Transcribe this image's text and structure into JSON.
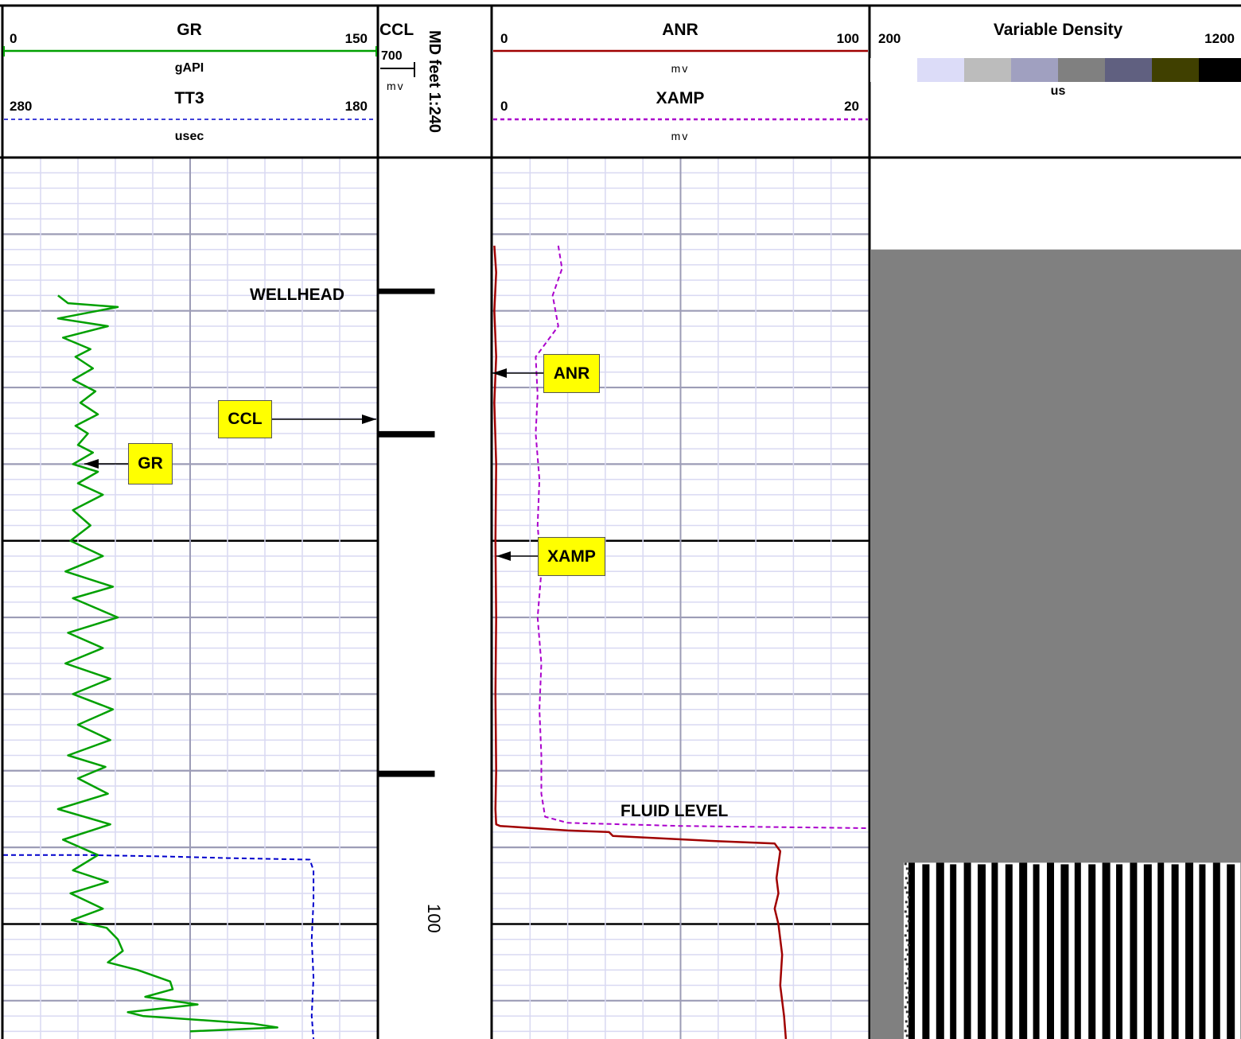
{
  "chart_data": {
    "type": "line",
    "title": "",
    "depth_axis": {
      "label": "MD feet 1:240",
      "range": [
        0,
        115
      ],
      "tick_labels": [
        {
          "depth": 100,
          "label": "100"
        }
      ]
    },
    "tracks": [
      {
        "id": "track1",
        "curves": [
          {
            "name": "GR",
            "unit": "gAPI",
            "scale_left": 0,
            "scale_right": 150,
            "color": "#00a000",
            "style": "solid",
            "points": [
              [
                22.0,
                18.0
              ],
              [
                26.0,
                19.0
              ],
              [
                46.0,
                19.5
              ],
              [
                22.0,
                21.0
              ],
              [
                42.0,
                22.0
              ],
              [
                24.0,
                23.5
              ],
              [
                35.0,
                25.0
              ],
              [
                29.0,
                26.0
              ],
              [
                36.0,
                27.5
              ],
              [
                28.0,
                29.0
              ],
              [
                37.0,
                30.5
              ],
              [
                31.0,
                32.0
              ],
              [
                38.0,
                33.5
              ],
              [
                29.0,
                35.0
              ],
              [
                34.0,
                36.0
              ],
              [
                30.0,
                37.5
              ],
              [
                36.0,
                38.5
              ],
              [
                28.0,
                40.0
              ],
              [
                38.0,
                41.0
              ],
              [
                30.0,
                42.5
              ],
              [
                40.0,
                44.0
              ],
              [
                28.0,
                46.0
              ],
              [
                35.0,
                48.0
              ],
              [
                27.0,
                50.0
              ],
              [
                40.0,
                52.0
              ],
              [
                25.0,
                54.0
              ],
              [
                44.0,
                56.0
              ],
              [
                28.0,
                57.5
              ],
              [
                46.0,
                60.0
              ],
              [
                26.0,
                62.0
              ],
              [
                40.0,
                64.0
              ],
              [
                25.0,
                66.0
              ],
              [
                43.0,
                68.0
              ],
              [
                28.0,
                70.0
              ],
              [
                44.0,
                72.0
              ],
              [
                30.0,
                74.0
              ],
              [
                43.0,
                76.0
              ],
              [
                26.0,
                78.0
              ],
              [
                41.0,
                79.5
              ],
              [
                30.0,
                81.0
              ],
              [
                42.0,
                83.0
              ],
              [
                22.0,
                85.0
              ],
              [
                43.0,
                87.0
              ],
              [
                24.0,
                89.0
              ],
              [
                38.0,
                91.0
              ],
              [
                28.0,
                93.0
              ],
              [
                42.0,
                94.5
              ],
              [
                27.0,
                96.0
              ],
              [
                40.0,
                98.0
              ],
              [
                27.5,
                99.5
              ],
              [
                41.5,
                100.5
              ],
              [
                46.0,
                102.0
              ],
              [
                48.0,
                103.5
              ],
              [
                42.0,
                105.0
              ],
              [
                54.0,
                106.0
              ],
              [
                67.0,
                107.5
              ],
              [
                68.0,
                108.5
              ],
              [
                57.0,
                109.5
              ],
              [
                78.0,
                110.5
              ],
              [
                50.0,
                111.5
              ],
              [
                56.0,
                112.0
              ],
              [
                100.0,
                113.0
              ],
              [
                110.0,
                113.5
              ],
              [
                75.0,
                114.0
              ]
            ]
          },
          {
            "name": "TT3",
            "unit": "usec",
            "scale_left": 280,
            "scale_right": 180,
            "color": "#0000cc",
            "style": "dashed",
            "points": [
              [
                280.0,
                91.0
              ],
              [
                257.0,
                91.0
              ],
              [
                235.0,
                91.2
              ],
              [
                220.0,
                91.4
              ],
              [
                198.0,
                91.6
              ],
              [
                197.0,
                93.0
              ],
              [
                197.0,
                97.0
              ],
              [
                197.5,
                102.0
              ],
              [
                197.0,
                107.0
              ],
              [
                197.5,
                112.0
              ],
              [
                197.0,
                115.0
              ]
            ]
          }
        ],
        "annotations": [
          {
            "text": "WELLHEAD",
            "depth": 17.5
          },
          {
            "text": "GR",
            "depth": 40.5,
            "tag": true
          },
          {
            "text": "CCL",
            "depth": 34.5,
            "tag": true
          }
        ]
      },
      {
        "id": "track_ccl",
        "curves": [
          {
            "name": "CCL",
            "unit": "mv",
            "scale_left": -300,
            "scale_right": 700,
            "color": "#000000",
            "style": "solid",
            "points": [
              [
                -300,
                0
              ],
              [
                -300,
                17.3
              ],
              [
                200,
                17.3
              ],
              [
                200,
                17.6
              ],
              [
                -300,
                17.6
              ],
              [
                -300,
                35.9
              ],
              [
                200,
                35.9
              ],
              [
                200,
                36.3
              ],
              [
                -300,
                36.3
              ],
              [
                -300,
                80.2
              ],
              [
                200,
                80.2
              ],
              [
                200,
                80.6
              ],
              [
                -300,
                80.6
              ],
              [
                -300,
                115
              ]
            ]
          }
        ],
        "scale_labels": [
          "700",
          "mv"
        ]
      },
      {
        "id": "track2",
        "curves": [
          {
            "name": "ANR",
            "unit": "mv",
            "scale_left": 0,
            "scale_right": 100,
            "color": "#a00000",
            "style": "solid",
            "points": [
              [
                0.5,
                11.5
              ],
              [
                1.0,
                15.0
              ],
              [
                0.5,
                20.0
              ],
              [
                1.0,
                26.0
              ],
              [
                0.5,
                32.0
              ],
              [
                1.0,
                40.0
              ],
              [
                0.8,
                50.0
              ],
              [
                1.0,
                60.0
              ],
              [
                0.8,
                70.0
              ],
              [
                1.0,
                80.0
              ],
              [
                0.8,
                85.0
              ],
              [
                1.0,
                87.0
              ],
              [
                2.0,
                87.2
              ],
              [
                20.0,
                87.8
              ],
              [
                31.0,
                88.0
              ],
              [
                32.0,
                88.5
              ],
              [
                60.0,
                89.2
              ],
              [
                75.0,
                89.5
              ],
              [
                76.5,
                90.5
              ],
              [
                75.5,
                94.0
              ],
              [
                76.0,
                96.0
              ],
              [
                75.0,
                98.0
              ],
              [
                76.0,
                100.0
              ],
              [
                77.0,
                104.0
              ],
              [
                76.5,
                108.0
              ],
              [
                77.5,
                112.0
              ],
              [
                78.0,
                115.0
              ]
            ]
          },
          {
            "name": "XAMP",
            "unit": "mv",
            "scale_left": 0,
            "scale_right": 20,
            "color": "#aa00cc",
            "style": "dashed",
            "points": [
              [
                3.5,
                11.5
              ],
              [
                3.7,
                14.5
              ],
              [
                3.2,
                18.0
              ],
              [
                3.5,
                22.0
              ],
              [
                2.3,
                26.0
              ],
              [
                2.4,
                31.0
              ],
              [
                2.3,
                36.0
              ],
              [
                2.5,
                42.0
              ],
              [
                2.4,
                48.0
              ],
              [
                2.6,
                54.0
              ],
              [
                2.4,
                60.0
              ],
              [
                2.6,
                66.0
              ],
              [
                2.5,
                72.0
              ],
              [
                2.6,
                78.0
              ],
              [
                2.6,
                83.0
              ],
              [
                2.8,
                86.0
              ],
              [
                4.0,
                86.8
              ],
              [
                10.0,
                87.2
              ],
              [
                20.0,
                87.5
              ]
            ]
          }
        ],
        "annotations": [
          {
            "text": "ANR",
            "depth": 26.5,
            "tag": true
          },
          {
            "text": "XAMP",
            "depth": 50.5,
            "tag": true
          },
          {
            "text": "FLUID LEVEL",
            "depth": 84.0
          }
        ]
      },
      {
        "id": "track_vdl",
        "name": "Variable Density",
        "unit": "us",
        "scale_left": 200,
        "scale_right": 1200,
        "colors": [
          "#ffffff",
          "#dcdcf8",
          "#bcbcbc",
          "#a0a0c0",
          "#808080",
          "#606080",
          "#404000",
          "#000000"
        ],
        "gray_fill_depth_top": 12.0,
        "signal_depth_top": 92.0
      }
    ],
    "header": {
      "track1": {
        "curve1": {
          "name": "GR",
          "left": "0",
          "right": "150",
          "unit": "gAPI"
        },
        "curve2": {
          "name": "TT3",
          "left": "280",
          "right": "180",
          "unit": "usec"
        }
      },
      "ccl": {
        "name": "CCL",
        "scale_val": "700",
        "unit": "mv"
      },
      "track2": {
        "curve1": {
          "name": "ANR",
          "left": "0",
          "right": "100",
          "unit": "mv"
        },
        "curve2": {
          "name": "XAMP",
          "left": "0",
          "right": "20",
          "unit": "mv"
        }
      },
      "vdl": {
        "name": "Variable Density",
        "left": "200",
        "right": "1200",
        "unit": "us"
      }
    },
    "grid": true
  }
}
